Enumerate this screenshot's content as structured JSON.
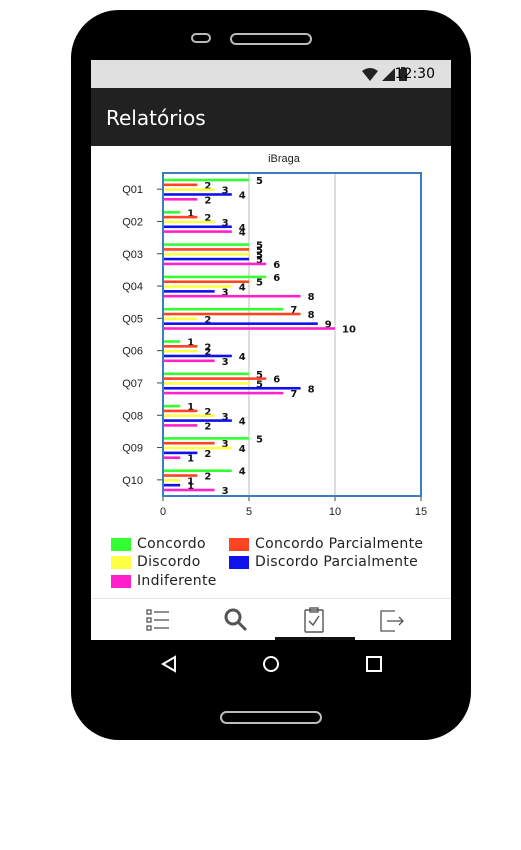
{
  "status_bar": {
    "time": "12:30",
    "icons": [
      "wifi-icon",
      "signal-icon",
      "battery-icon"
    ]
  },
  "app_bar": {
    "title": "Relatórios"
  },
  "chart_data": {
    "type": "bar",
    "orientation": "horizontal",
    "title": "iBraga",
    "categories": [
      "Q01",
      "Q02",
      "Q03",
      "Q04",
      "Q05",
      "Q06",
      "Q07",
      "Q08",
      "Q09",
      "Q10"
    ],
    "xlim": [
      0,
      15
    ],
    "xticks": [
      0,
      5,
      10,
      15
    ],
    "grid": "vertical",
    "legend_position": "bottom",
    "series": [
      {
        "name": "Concordo",
        "color": "#33ff33",
        "values": [
          5,
          1,
          5,
          6,
          7,
          1,
          5,
          1,
          5,
          4
        ]
      },
      {
        "name": "Concordo Parcialmente",
        "color": "#ff4422",
        "values": [
          2,
          2,
          5,
          5,
          8,
          2,
          6,
          2,
          3,
          2
        ]
      },
      {
        "name": "Discordo",
        "color": "#ffff44",
        "values": [
          3,
          3,
          5,
          4,
          2,
          2,
          5,
          3,
          4,
          1
        ]
      },
      {
        "name": "Discordo Parcialmente",
        "color": "#1111ee",
        "values": [
          4,
          4,
          5,
          3,
          9,
          4,
          8,
          4,
          2,
          1
        ]
      },
      {
        "name": "Indiferente",
        "color": "#ff22cc",
        "values": [
          2,
          4,
          6,
          8,
          10,
          3,
          7,
          2,
          1,
          3
        ]
      }
    ]
  },
  "bottom_nav": {
    "items": [
      "list-icon",
      "search-icon",
      "clipboard-check-icon",
      "exit-icon"
    ],
    "selected": "clipboard-check-icon"
  },
  "system_nav": {
    "items": [
      "back-icon",
      "home-icon",
      "recents-icon"
    ]
  }
}
